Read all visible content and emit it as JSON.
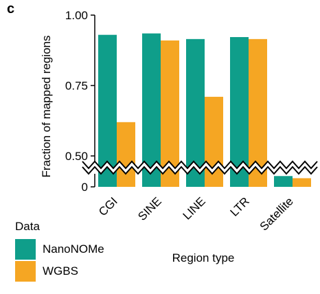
{
  "panel_label": "c",
  "chart_data": {
    "type": "bar",
    "title": "",
    "xlabel": "Region type",
    "ylabel": "Fraction of mapped regions",
    "categories": [
      "CGI",
      "SINE",
      "LINE",
      "LTR",
      "Satellite"
    ],
    "series": [
      {
        "name": "NanoNOMe",
        "color": "#0f9e8a",
        "values": [
          0.93,
          0.935,
          0.915,
          0.922,
          0.05
        ]
      },
      {
        "name": "WGBS",
        "color": "#f5a623",
        "values": [
          0.62,
          0.91,
          0.71,
          0.915,
          0.04
        ]
      }
    ],
    "yticks": [
      "1.00",
      "0.75",
      "0.50",
      "0"
    ],
    "ylim": [
      0,
      1.0
    ],
    "axis_break": true,
    "grid": false,
    "legend": {
      "title": "Data",
      "placement": "bottom-left"
    }
  }
}
